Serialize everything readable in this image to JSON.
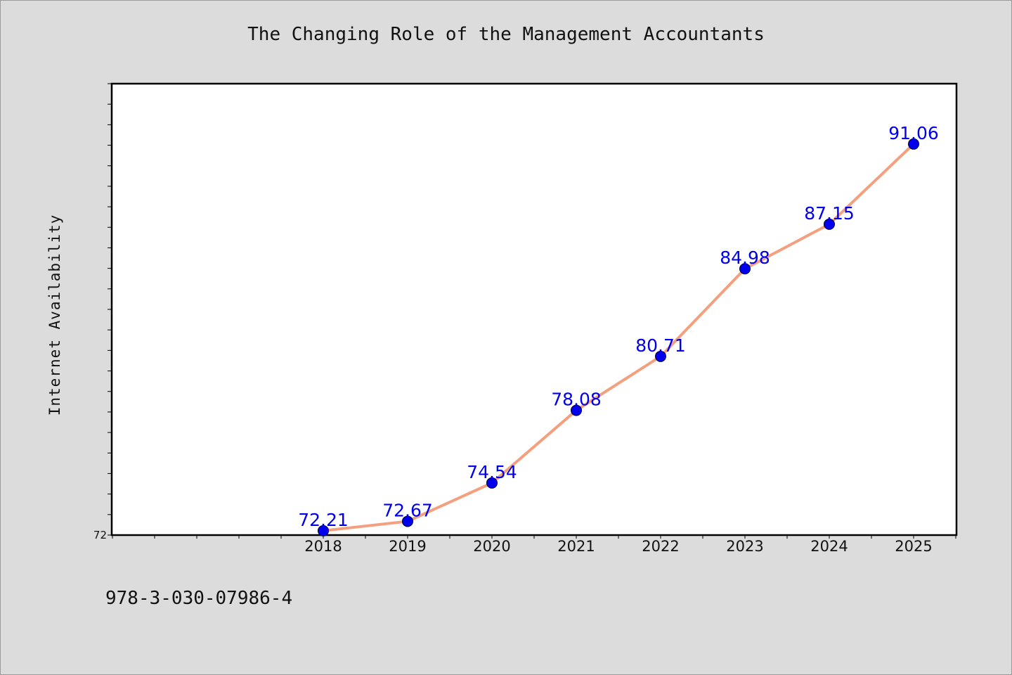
{
  "chart_data": {
    "type": "line",
    "title": "The Changing Role of the Management Accountants",
    "xlabel": "",
    "ylabel": "Internet Availability",
    "categories": [
      "2018",
      "2019",
      "2020",
      "2021",
      "2022",
      "2023",
      "2024",
      "2025"
    ],
    "series": [
      {
        "values": [
          72.21,
          72.67,
          74.54,
          78.08,
          80.71,
          84.98,
          87.15,
          91.06
        ],
        "data_labels": [
          "72.21",
          "72.67",
          "74.54",
          "78.08",
          "80.71",
          "84.98",
          "87.15",
          "91.06"
        ],
        "line_color": "#f4a07e",
        "marker_color": "#0000ee",
        "label_color": "#0000ee"
      }
    ],
    "ylim": [
      72,
      94
    ],
    "yticks_labeled": [
      "72"
    ],
    "grid": false,
    "legend": "none"
  },
  "footer": {
    "code": "978-3-030-07986-4"
  }
}
